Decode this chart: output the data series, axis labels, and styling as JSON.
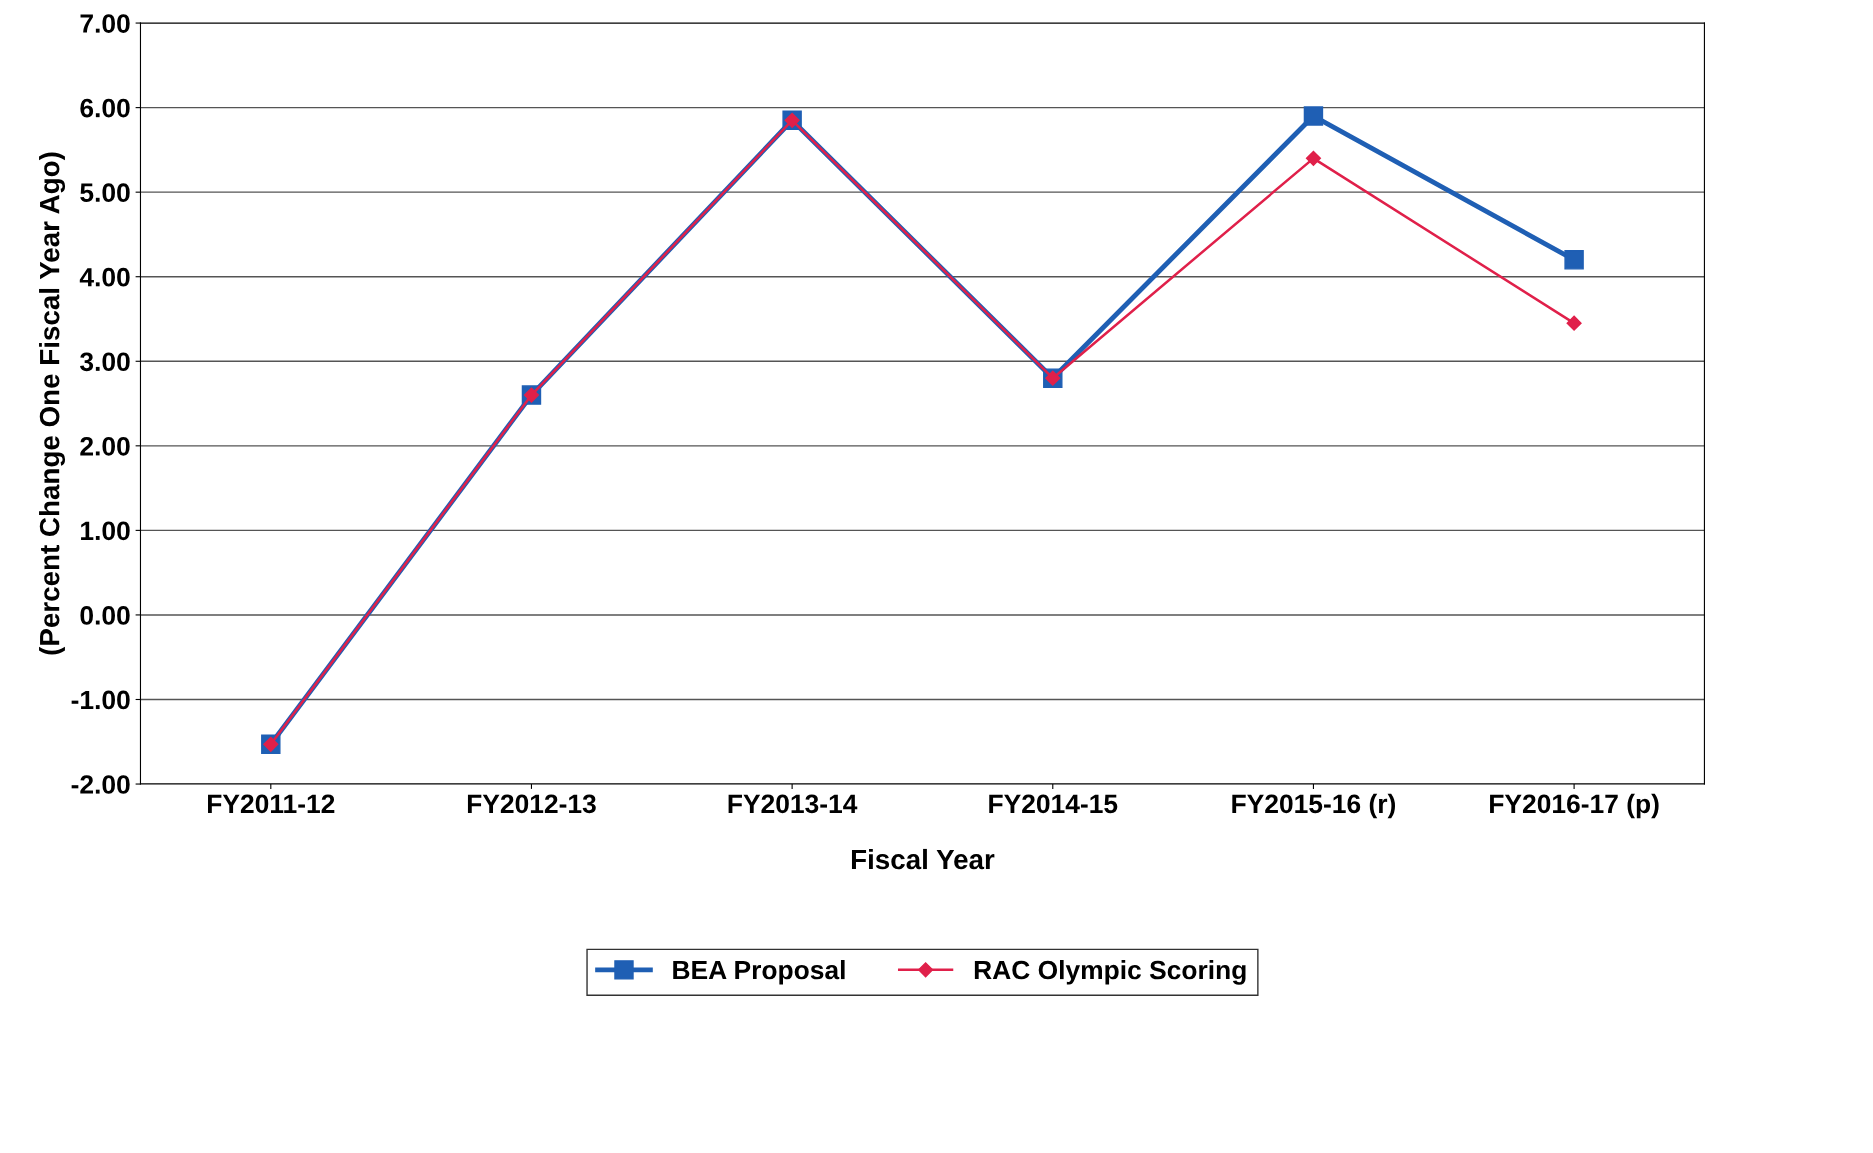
{
  "chart_data": {
    "type": "line",
    "xlabel": "Fiscal Year",
    "ylabel": "(Percent Change One Fiscal Year Ago)",
    "categories": [
      "FY2011-12",
      "FY2012-13",
      "FY2013-14",
      "FY2014-15",
      "FY2015-16 (r)",
      "FY2016-17 (p)"
    ],
    "series": [
      {
        "name": "BEA Proposal",
        "color": "#1f5fb4",
        "marker": "square",
        "values": [
          -1.53,
          2.6,
          5.85,
          2.8,
          5.9,
          4.2
        ]
      },
      {
        "name": "RAC Olympic Scoring",
        "color": "#e0204a",
        "marker": "diamond",
        "values": [
          -1.53,
          2.6,
          5.85,
          2.8,
          5.4,
          3.45
        ]
      }
    ],
    "ylim": [
      -2,
      7
    ],
    "yticks": [
      {
        "value": -2,
        "label": "-2.00"
      },
      {
        "value": -1,
        "label": "-1.00"
      },
      {
        "value": 0,
        "label": "0.00"
      },
      {
        "value": 1,
        "label": "1.00"
      },
      {
        "value": 2,
        "label": "2.00"
      },
      {
        "value": 3,
        "label": "3.00"
      },
      {
        "value": 4,
        "label": "4.00"
      },
      {
        "value": 5,
        "label": "5.00"
      },
      {
        "value": 6,
        "label": "6.00"
      },
      {
        "value": 7,
        "label": "7.00"
      }
    ],
    "grid": "y",
    "legend": "bottom",
    "line_style": "solid"
  }
}
